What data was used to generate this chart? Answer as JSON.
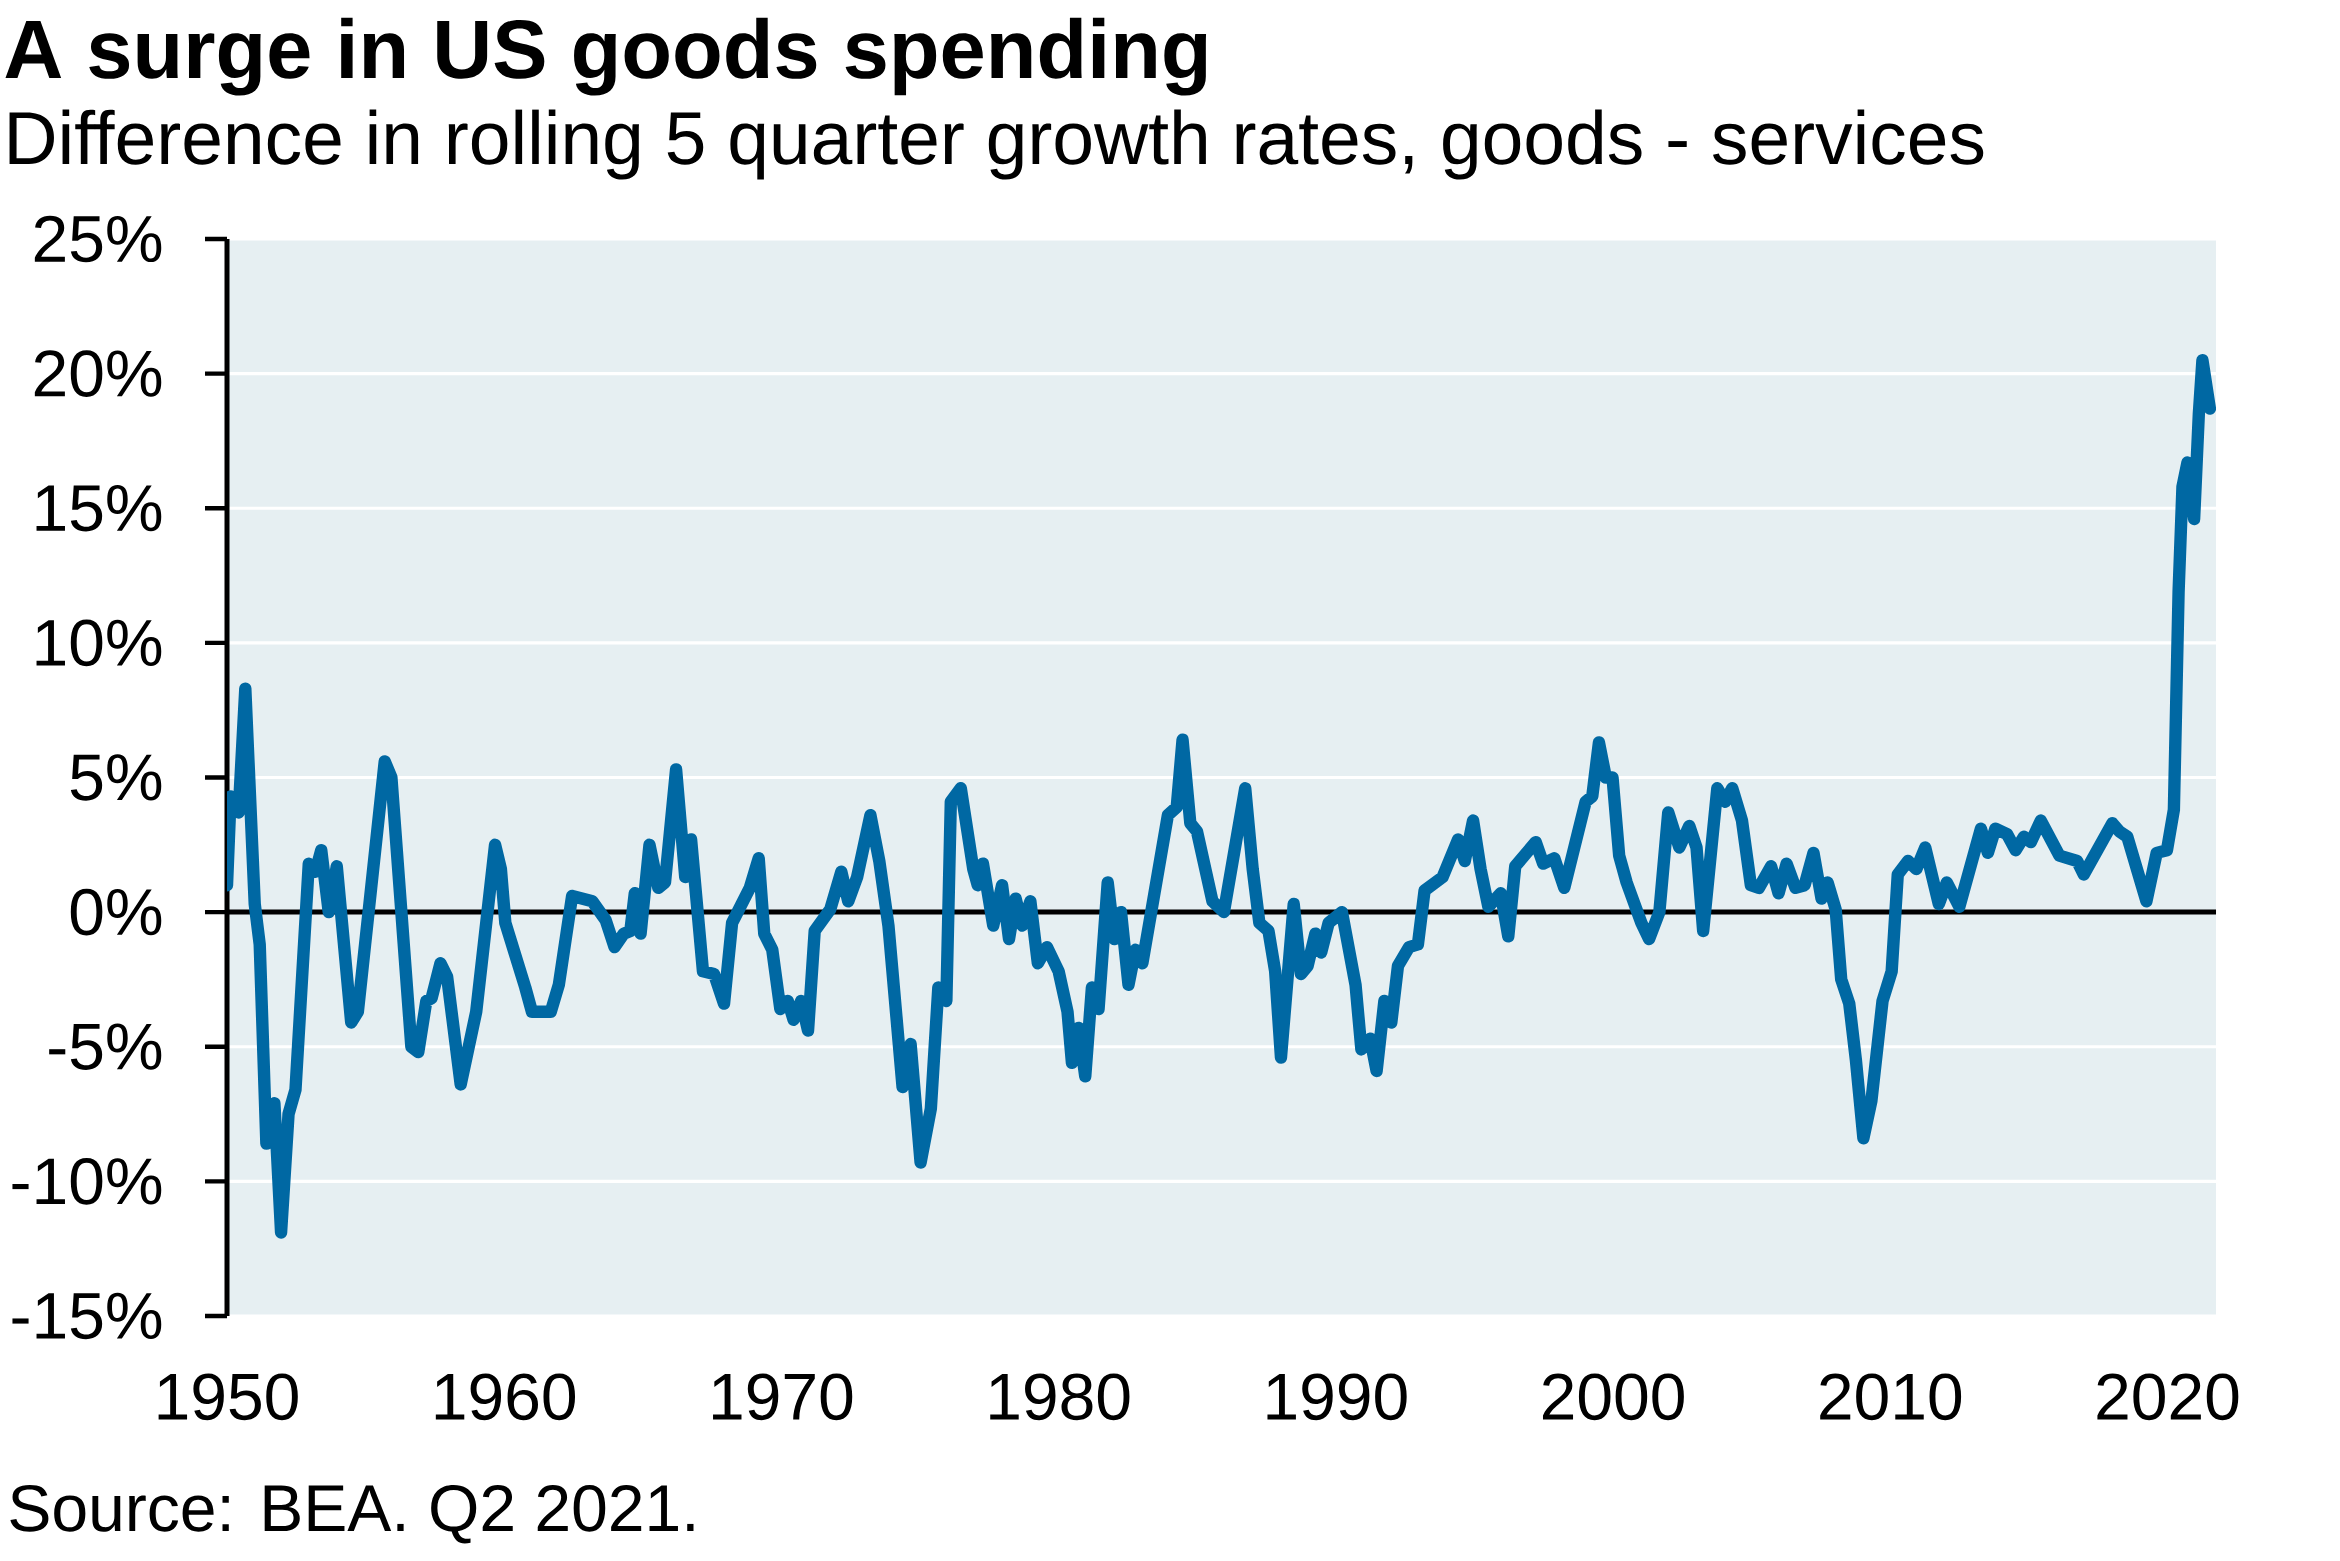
{
  "chart_data": {
    "type": "line",
    "title": "A surge in US goods spending",
    "subtitle": "Difference in rolling 5 quarter growth rates, goods - services",
    "annotations": [
      "Source: BEA. Q2 2021."
    ],
    "xlim": [
      1950,
      2021.75
    ],
    "xticks": [
      1950,
      1960,
      1970,
      1980,
      1990,
      2000,
      2010,
      2020
    ],
    "ylim": [
      -15,
      25
    ],
    "yticks": [
      {
        "value": -15,
        "label": "-15%"
      },
      {
        "value": -10,
        "label": "-10%"
      },
      {
        "value": -5,
        "label": "-5%"
      },
      {
        "value": 0,
        "label": "0%"
      },
      {
        "value": 5,
        "label": "5%"
      },
      {
        "value": 10,
        "label": "10%"
      },
      {
        "value": 15,
        "label": "15%"
      },
      {
        "value": 20,
        "label": "20%"
      },
      {
        "value": 25,
        "label": "25%"
      }
    ],
    "grid": "y",
    "color": "#0068a3",
    "x": [
      1950.0,
      1950.13,
      1950.42,
      1950.66,
      1951.0,
      1951.18,
      1951.42,
      1951.71,
      1951.95,
      1952.22,
      1952.47,
      1952.95,
      1953.19,
      1953.4,
      1953.67,
      1953.96,
      1954.48,
      1954.72,
      1955.2,
      1955.69,
      1955.93,
      1956.65,
      1956.9,
      1957.19,
      1957.38,
      1957.7,
      1957.94,
      1958.43,
      1958.99,
      1959.67,
      1959.88,
      1960.04,
      1960.76,
      1961.0,
      1961.68,
      1961.97,
      1962.45,
      1963.18,
      1963.66,
      1963.98,
      1964.31,
      1964.55,
      1964.71,
      1964.92,
      1965.24,
      1965.56,
      1965.8,
      1966.2,
      1966.53,
      1966.74,
      1967.17,
      1967.57,
      1967.93,
      1968.22,
      1968.86,
      1969.18,
      1969.38,
      1969.67,
      1969.96,
      1970.23,
      1970.44,
      1970.71,
      1970.96,
      1971.2,
      1971.76,
      1972.16,
      1972.41,
      1972.73,
      1973.21,
      1973.53,
      1973.86,
      1974.37,
      1974.66,
      1975.02,
      1975.39,
      1975.66,
      1975.95,
      1976.11,
      1976.47,
      1976.92,
      1977.08,
      1977.27,
      1977.64,
      1977.96,
      1978.21,
      1978.45,
      1978.69,
      1978.98,
      1979.25,
      1979.58,
      1980.0,
      1980.32,
      1980.48,
      1980.72,
      1980.96,
      1981.2,
      1981.44,
      1981.77,
      1982.01,
      1982.25,
      1982.52,
      1982.77,
      1983.02,
      1983.94,
      1984.26,
      1984.47,
      1984.75,
      1984.99,
      1985.55,
      1985.96,
      1986.73,
      1987.0,
      1987.24,
      1987.57,
      1987.81,
      1988.02,
      1988.48,
      1988.74,
      1988.98,
      1989.26,
      1989.47,
      1989.74,
      1990.22,
      1990.71,
      1990.92,
      1991.24,
      1991.47,
      1991.75,
      1992.0,
      1992.24,
      1992.64,
      1992.96,
      1993.2,
      1993.85,
      1994.41,
      1994.65,
      1994.95,
      1995.22,
      1995.5,
      1995.95,
      1996.22,
      1996.47,
      1997.21,
      1997.48,
      1997.88,
      1998.24,
      1999.01,
      1999.25,
      1999.49,
      1999.74,
      1999.98,
      2000.22,
      2000.49,
      2001.02,
      2001.3,
      2001.67,
      2001.99,
      2002.39,
      2002.75,
      2003.01,
      2003.25,
      2003.76,
      2004.04,
      2004.3,
      2004.65,
      2004.97,
      2005.26,
      2005.7,
      2005.97,
      2006.26,
      2006.58,
      2006.91,
      2007.23,
      2007.52,
      2007.74,
      2008.03,
      2008.23,
      2008.52,
      2008.76,
      2009.03,
      2009.32,
      2009.72,
      2010.05,
      2010.27,
      2010.64,
      2010.94,
      2011.26,
      2011.75,
      2012.04,
      2012.49,
      2013.27,
      2013.52,
      2013.79,
      2014.21,
      2014.52,
      2014.82,
      2015.07,
      2015.43,
      2016.1,
      2016.74,
      2016.98,
      2018.01,
      2018.26,
      2018.55,
      2019.24,
      2019.61,
      2019.98,
      2020.23,
      2020.4,
      2020.54,
      2020.72,
      2020.96,
      2021.13,
      2021.26,
      2021.53
    ],
    "values": [
      1.0,
      4.3,
      3.7,
      8.3,
      0.3,
      -1.2,
      -8.6,
      -7.1,
      -11.9,
      -7.5,
      -6.6,
      1.8,
      1.5,
      2.3,
      0.0,
      1.7,
      -4.1,
      -3.7,
      0.9,
      5.6,
      5.0,
      -5.0,
      -5.2,
      -3.3,
      -3.2,
      -1.9,
      -2.4,
      -6.4,
      -3.7,
      2.5,
      1.6,
      -0.4,
      -2.8,
      -3.7,
      -3.7,
      -2.7,
      0.6,
      0.4,
      -0.3,
      -1.3,
      -0.8,
      -0.7,
      0.7,
      -0.8,
      2.5,
      0.9,
      1.1,
      5.3,
      1.3,
      2.7,
      -2.2,
      -2.3,
      -3.4,
      -0.4,
      0.9,
      2.0,
      -0.8,
      -1.4,
      -3.6,
      -3.3,
      -4.0,
      -3.3,
      -4.4,
      -0.7,
      0.1,
      1.5,
      0.4,
      1.3,
      3.6,
      1.9,
      -0.5,
      -6.5,
      -4.9,
      -9.3,
      -7.3,
      -2.8,
      -3.3,
      4.1,
      4.6,
      1.6,
      1.0,
      1.8,
      -0.5,
      1.0,
      -1.0,
      0.5,
      -0.5,
      0.4,
      -1.9,
      -1.3,
      -2.2,
      -3.7,
      -5.6,
      -4.3,
      -6.1,
      -2.8,
      -3.6,
      1.1,
      -1.0,
      0.0,
      -2.7,
      -1.4,
      -1.9,
      3.6,
      3.9,
      6.4,
      3.3,
      3.0,
      0.4,
      0.0,
      4.6,
      1.6,
      -0.4,
      -0.7,
      -2.2,
      -5.4,
      0.3,
      -2.3,
      -2.0,
      -0.8,
      -1.5,
      -0.4,
      0.0,
      -2.7,
      -5.1,
      -4.7,
      -5.9,
      -3.3,
      -4.1,
      -2.0,
      -1.3,
      -1.2,
      0.8,
      1.3,
      2.7,
      1.9,
      3.4,
      1.6,
      0.2,
      0.7,
      -0.9,
      1.7,
      2.6,
      1.8,
      2.0,
      0.9,
      4.1,
      4.3,
      6.3,
      5.0,
      5.0,
      2.1,
      1.1,
      -0.4,
      -1.0,
      0.0,
      3.7,
      2.4,
      3.2,
      2.4,
      -0.7,
      4.6,
      4.1,
      4.6,
      3.4,
      1.0,
      0.9,
      1.7,
      0.7,
      1.8,
      0.9,
      1.0,
      2.2,
      0.5,
      1.1,
      0.1,
      -2.5,
      -3.4,
      -5.5,
      -8.4,
      -7.0,
      -3.3,
      -2.2,
      1.4,
      1.9,
      1.6,
      2.4,
      0.3,
      1.1,
      0.2,
      3.1,
      2.2,
      3.1,
      2.9,
      2.3,
      2.8,
      2.6,
      3.4,
      2.1,
      1.9,
      1.4,
      3.3,
      3.0,
      2.8,
      0.4,
      2.2,
      2.3,
      3.8,
      11.9,
      15.8,
      16.7,
      14.6,
      18.5,
      20.5,
      18.7
    ]
  }
}
